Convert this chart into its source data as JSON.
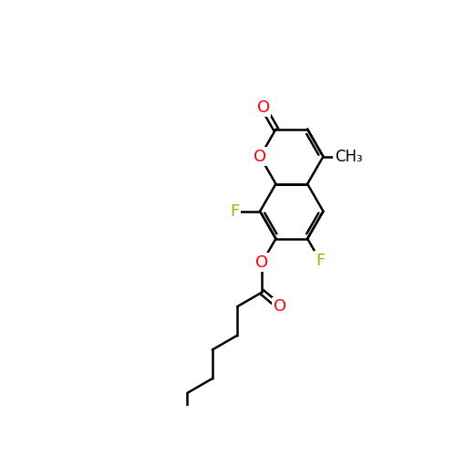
{
  "background_color": "#ffffff",
  "bond_color": "#000000",
  "bond_width": 1.8,
  "atom_colors": {
    "C": "#000000",
    "O": "#ff0000",
    "F": "#7fc000"
  },
  "font_size": 13,
  "font_size_me": 12
}
